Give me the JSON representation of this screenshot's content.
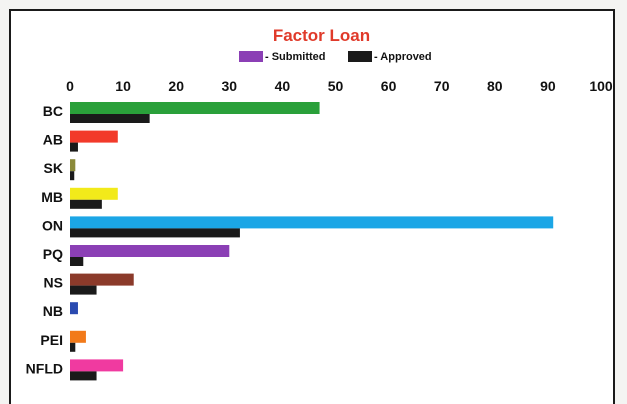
{
  "chart_data": {
    "type": "bar",
    "orientation": "horizontal",
    "title": "Factor Loan",
    "title_color": "#e03a2a",
    "categories": [
      "BC",
      "AB",
      "SK",
      "MB",
      "ON",
      "PQ",
      "NS",
      "NB",
      "PEI",
      "NFLD"
    ],
    "series": [
      {
        "name": "Submitted",
        "legend_label": "- Submitted",
        "legend_color": "#8b3fb5",
        "bar_colors": [
          "#2aa03a",
          "#f23a2a",
          "#8b8a3a",
          "#f2ea1a",
          "#1ba6e6",
          "#8b3fb5",
          "#8b3a2a",
          "#2a4ab0",
          "#f27a1a",
          "#f03aa0"
        ],
        "values": [
          47,
          9,
          1,
          9,
          91,
          30,
          12,
          1.5,
          3,
          10
        ]
      },
      {
        "name": "Approved",
        "legend_label": "- Approved",
        "legend_color": "#1a1a1a",
        "bar_colors": [
          "#1a1a1a",
          "#1a1a1a",
          "#1a1a1a",
          "#1a1a1a",
          "#1a1a1a",
          "#1a1a1a",
          "#1a1a1a",
          "#1a1a1a",
          "#1a1a1a",
          "#1a1a1a"
        ],
        "values": [
          15,
          1.5,
          0.8,
          6,
          32,
          2.5,
          5,
          0,
          1,
          5
        ]
      }
    ],
    "xticks": [
      "0",
      "10",
      "20",
      "30",
      "40",
      "50",
      "60",
      "70",
      "80",
      "90",
      "100"
    ],
    "xlim": [
      0,
      100
    ],
    "xaxis_position": "top",
    "legend_position": "top-center",
    "grid": false
  }
}
